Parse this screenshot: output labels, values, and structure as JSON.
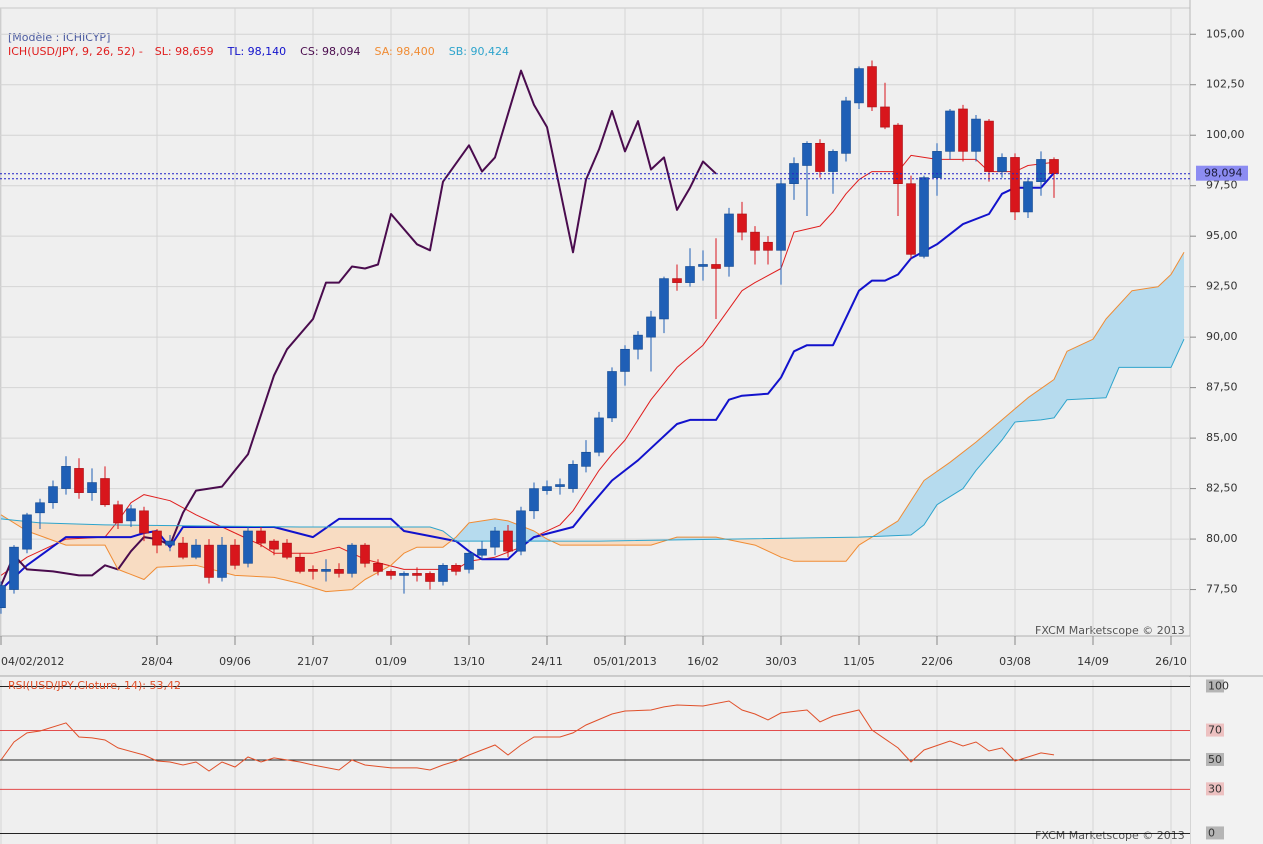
{
  "chart_data": [
    {
      "type": "candlestick",
      "model": "[Modèle : ICHICYP]",
      "indicator": "ICH(USD/JPY, 9, 26, 52) -",
      "watermark": "FXCM Marketscope © 2013",
      "up_color": "#1f5fb6",
      "down_color": "#d8161c",
      "cloud_fill": [
        "#b6dbee",
        "#f8dcc2"
      ],
      "xlim": [
        0,
        91.5
      ],
      "xticks": [
        {
          "value": 0,
          "label": "04/02/2012"
        },
        {
          "value": 12,
          "label": "28/04"
        },
        {
          "value": 18,
          "label": "09/06"
        },
        {
          "value": 24,
          "label": "21/07"
        },
        {
          "value": 30,
          "label": "01/09"
        },
        {
          "value": 36,
          "label": "13/10"
        },
        {
          "value": 42,
          "label": "24/11"
        },
        {
          "value": 48,
          "label": "05/01/2013"
        },
        {
          "value": 54,
          "label": "16/02"
        },
        {
          "value": 60,
          "label": "30/03"
        },
        {
          "value": 66,
          "label": "11/05"
        },
        {
          "value": 72,
          "label": "22/06"
        },
        {
          "value": 78,
          "label": "03/08"
        },
        {
          "value": 84,
          "label": "14/09"
        },
        {
          "value": 90,
          "label": "26/10"
        }
      ],
      "ylim": [
        75.2,
        106.3
      ],
      "yticks": [
        {
          "value": 77.5,
          "label": "77,50"
        },
        {
          "value": 80,
          "label": "80,00"
        },
        {
          "value": 82.5,
          "label": "82,50"
        },
        {
          "value": 85,
          "label": "85,00"
        },
        {
          "value": 87.5,
          "label": "87,50"
        },
        {
          "value": 90,
          "label": "90,00"
        },
        {
          "value": 92.5,
          "label": "92,50"
        },
        {
          "value": 95,
          "label": "95,00"
        },
        {
          "value": 97.5,
          "label": "97,50"
        },
        {
          "value": 100,
          "label": "100,00"
        },
        {
          "value": 102.5,
          "label": "102,50"
        },
        {
          "value": 105,
          "label": "105,00"
        }
      ],
      "grid": true,
      "price_marker": {
        "value": 98.094,
        "label": "98,094",
        "color": "#8c8cf2"
      },
      "x": [
        0,
        1,
        2,
        3,
        4,
        5,
        6,
        7,
        8,
        9,
        10,
        11,
        12,
        13,
        14,
        15,
        16,
        17,
        18,
        19,
        20,
        21,
        22,
        23,
        24,
        25,
        26,
        27,
        28,
        29,
        30,
        31,
        32,
        33,
        34,
        35,
        36,
        37,
        38,
        39,
        40,
        41,
        42,
        43,
        44,
        45,
        46,
        47,
        48,
        49,
        50,
        51,
        52,
        53,
        54,
        55,
        56,
        57,
        58,
        59,
        60,
        61,
        62,
        63,
        64,
        65,
        66,
        67,
        68,
        69,
        70,
        71,
        72,
        73,
        74,
        75,
        76,
        77,
        78,
        79,
        80,
        81
      ],
      "open": [
        76.6,
        77.5,
        79.5,
        81.3,
        81.8,
        82.5,
        83.5,
        82.3,
        83.0,
        81.7,
        80.9,
        81.4,
        80.4,
        79.7,
        79.8,
        79.1,
        79.7,
        78.1,
        79.7,
        78.8,
        80.4,
        79.9,
        79.8,
        79.1,
        78.5,
        78.4,
        78.5,
        78.3,
        79.7,
        78.8,
        78.4,
        78.2,
        78.3,
        78.3,
        77.9,
        78.7,
        78.5,
        79.2,
        79.6,
        80.4,
        79.4,
        81.4,
        82.4,
        82.6,
        82.5,
        83.6,
        84.3,
        86.0,
        88.3,
        89.4,
        90.0,
        90.9,
        92.9,
        92.7,
        93.5,
        93.6,
        93.5,
        96.1,
        95.2,
        94.7,
        94.3,
        97.6,
        98.5,
        99.6,
        98.2,
        99.1,
        101.6,
        103.4,
        101.4,
        100.5,
        97.6,
        94.0,
        97.9,
        99.2,
        101.3,
        99.2,
        100.7,
        98.2,
        98.9,
        96.2,
        97.7,
        98.8
      ],
      "high": [
        77.9,
        79.7,
        81.3,
        82.0,
        82.9,
        84.1,
        84.0,
        83.5,
        83.6,
        81.9,
        81.7,
        81.6,
        80.5,
        80.2,
        80.1,
        80.0,
        80.0,
        80.1,
        80.0,
        80.6,
        80.6,
        80.0,
        80.0,
        79.3,
        78.7,
        79.0,
        78.8,
        79.8,
        79.8,
        79.0,
        78.5,
        78.4,
        78.6,
        78.4,
        78.8,
        78.8,
        79.4,
        79.9,
        80.6,
        80.7,
        81.6,
        82.8,
        82.9,
        83.0,
        83.9,
        84.9,
        86.3,
        88.5,
        89.6,
        90.3,
        91.3,
        93.0,
        93.6,
        94.4,
        94.3,
        94.9,
        96.4,
        96.7,
        95.5,
        95.0,
        97.8,
        98.9,
        99.7,
        99.8,
        99.3,
        101.9,
        103.4,
        103.7,
        102.6,
        100.6,
        98.0,
        98.0,
        99.6,
        101.3,
        101.5,
        101.0,
        100.8,
        99.1,
        99.1,
        97.9,
        99.2,
        98.9
      ],
      "low": [
        76.3,
        77.3,
        79.3,
        80.5,
        81.5,
        82.2,
        82.0,
        81.9,
        81.6,
        80.5,
        80.6,
        79.9,
        79.3,
        79.4,
        79.0,
        79.0,
        77.8,
        77.9,
        78.5,
        78.6,
        79.6,
        79.2,
        79.0,
        78.3,
        78.0,
        77.9,
        78.1,
        78.1,
        78.6,
        78.2,
        78.0,
        77.3,
        77.9,
        77.5,
        77.7,
        78.2,
        78.3,
        79.0,
        79.2,
        79.1,
        79.2,
        81.0,
        82.2,
        82.2,
        82.3,
        83.3,
        84.1,
        85.8,
        87.6,
        88.9,
        88.3,
        90.2,
        92.3,
        92.5,
        92.8,
        90.9,
        93.0,
        94.8,
        93.6,
        93.6,
        92.6,
        96.8,
        96.0,
        97.9,
        97.1,
        98.7,
        101.3,
        101.2,
        100.3,
        96.0,
        93.9,
        93.9,
        97.0,
        98.8,
        98.7,
        98.7,
        97.7,
        97.9,
        95.8,
        95.9,
        97.0,
        96.9
      ],
      "close": [
        77.7,
        79.6,
        81.2,
        81.8,
        82.6,
        83.6,
        82.3,
        82.8,
        81.7,
        80.8,
        81.5,
        80.3,
        79.7,
        79.9,
        79.1,
        79.7,
        78.1,
        79.7,
        78.7,
        80.4,
        79.8,
        79.5,
        79.1,
        78.4,
        78.4,
        78.5,
        78.3,
        79.7,
        78.8,
        78.4,
        78.2,
        78.3,
        78.2,
        77.9,
        78.7,
        78.4,
        79.3,
        79.5,
        80.4,
        79.4,
        81.4,
        82.5,
        82.6,
        82.7,
        83.7,
        84.3,
        86.0,
        88.3,
        89.4,
        90.1,
        91.0,
        92.9,
        92.7,
        93.5,
        93.6,
        93.4,
        96.1,
        95.2,
        94.3,
        94.3,
        97.6,
        98.6,
        99.6,
        98.2,
        99.2,
        101.7,
        103.3,
        101.4,
        100.4,
        97.6,
        94.1,
        97.9,
        99.2,
        101.2,
        99.2,
        100.8,
        98.2,
        98.9,
        96.2,
        97.7,
        98.8,
        98.094
      ],
      "series": [
        {
          "name": "SL: 98,659",
          "color": "#e01e1e",
          "line_width": 1,
          "x": [
            0,
            2,
            5,
            8,
            9,
            10,
            11,
            13,
            15,
            18,
            20,
            21,
            24,
            26,
            28,
            31,
            35,
            36,
            38,
            40,
            41,
            43,
            44,
            45,
            46,
            47,
            48,
            50,
            52,
            54,
            56,
            57,
            58,
            60,
            61,
            63,
            64,
            65,
            66,
            67,
            69,
            70,
            72,
            75,
            76,
            78,
            79,
            81
          ],
          "values": [
            78.2,
            79.1,
            80.0,
            80.1,
            80.9,
            81.8,
            82.2,
            81.9,
            81.2,
            80.3,
            79.7,
            79.3,
            79.3,
            79.6,
            79.0,
            78.5,
            78.5,
            78.9,
            79.1,
            79.6,
            80.1,
            80.7,
            81.4,
            82.4,
            83.4,
            84.2,
            84.9,
            86.9,
            88.5,
            89.6,
            91.4,
            92.3,
            92.7,
            93.4,
            95.2,
            95.5,
            96.2,
            97.1,
            97.8,
            98.2,
            98.2,
            99.0,
            98.8,
            98.8,
            98.2,
            98.2,
            98.5,
            98.66
          ]
        },
        {
          "name": "TL: 98,140",
          "color": "#1212cc",
          "line_width": 2,
          "x": [
            0,
            2,
            5,
            10,
            11,
            12,
            13,
            14,
            21,
            24,
            26,
            30,
            31,
            35,
            36,
            37,
            39,
            40,
            41,
            44,
            45,
            47,
            49,
            50,
            52,
            53,
            55,
            56,
            57,
            59,
            60,
            61,
            62,
            64,
            66,
            67,
            68,
            69,
            70,
            72,
            73,
            74,
            76,
            77,
            78,
            80,
            81
          ],
          "values": [
            77.5,
            78.7,
            80.1,
            80.1,
            80.3,
            80.4,
            79.6,
            80.6,
            80.6,
            80.1,
            81.0,
            81.0,
            80.4,
            79.9,
            79.4,
            79.0,
            79.0,
            79.6,
            80.1,
            80.6,
            81.4,
            82.9,
            83.9,
            84.5,
            85.7,
            85.9,
            85.9,
            86.9,
            87.1,
            87.2,
            88.0,
            89.3,
            89.6,
            89.6,
            92.3,
            92.8,
            92.8,
            93.1,
            93.9,
            94.6,
            95.1,
            95.6,
            96.1,
            97.1,
            97.4,
            97.4,
            98.14
          ]
        },
        {
          "name": "CS: 98,094",
          "color": "#4a0c4e",
          "line_width": 2,
          "x": [
            0,
            1,
            2,
            4,
            6,
            7,
            8,
            9,
            10,
            11,
            12,
            13,
            14,
            15,
            17,
            18,
            19,
            21,
            22,
            24,
            25,
            26,
            27,
            28,
            29,
            30,
            32,
            33,
            34,
            36,
            37,
            38,
            40,
            41,
            42,
            44,
            45,
            46,
            47,
            48,
            49,
            50,
            51,
            52,
            53,
            54,
            55
          ],
          "values": [
            77.7,
            79.2,
            78.5,
            78.4,
            78.2,
            78.2,
            78.7,
            78.5,
            79.4,
            80.1,
            80.0,
            79.7,
            81.3,
            82.4,
            82.6,
            83.4,
            84.2,
            88.1,
            89.4,
            90.9,
            92.7,
            92.7,
            93.5,
            93.4,
            93.6,
            96.1,
            94.6,
            94.3,
            97.7,
            99.5,
            98.2,
            98.9,
            103.2,
            101.5,
            100.4,
            94.2,
            97.8,
            99.3,
            101.2,
            99.2,
            100.7,
            98.3,
            98.9,
            96.3,
            97.4,
            98.7,
            98.094
          ]
        },
        {
          "name": "SA: 98,400",
          "color": "#f08c34",
          "line_width": 1,
          "x": [
            0,
            2,
            5,
            8,
            9,
            11,
            12,
            15,
            18,
            21,
            23,
            25,
            27,
            28,
            30,
            31,
            32,
            34,
            35,
            36,
            38,
            39,
            41,
            42,
            43,
            50,
            52,
            55,
            58,
            60,
            61,
            65,
            66,
            67,
            69,
            71,
            73,
            75,
            77,
            79,
            81,
            82,
            84,
            85,
            87,
            89,
            90,
            91
          ],
          "values": [
            81.2,
            80.4,
            79.7,
            79.7,
            78.5,
            78.0,
            78.6,
            78.7,
            78.2,
            78.1,
            77.8,
            77.4,
            77.5,
            78.0,
            78.7,
            79.3,
            79.6,
            79.6,
            80.1,
            80.8,
            81.0,
            80.9,
            80.4,
            80.0,
            79.7,
            79.7,
            80.1,
            80.1,
            79.7,
            79.1,
            78.9,
            78.9,
            79.7,
            80.1,
            80.9,
            82.9,
            83.8,
            84.8,
            85.9,
            87.0,
            87.9,
            89.3,
            89.9,
            90.9,
            92.3,
            92.5,
            93.1,
            94.2
          ]
        },
        {
          "name": "SB: 90,424",
          "color": "#2ea4cc",
          "line_width": 1,
          "x": [
            0,
            3,
            8,
            23,
            33,
            34,
            35,
            46,
            66,
            70,
            71,
            72,
            74,
            75,
            77,
            78,
            80,
            81,
            82,
            85,
            86,
            90,
            91
          ],
          "values": [
            81.0,
            80.8,
            80.7,
            80.6,
            80.6,
            80.4,
            79.9,
            79.9,
            80.1,
            80.2,
            80.7,
            81.7,
            82.5,
            83.4,
            84.9,
            85.8,
            85.9,
            86.0,
            86.9,
            87.0,
            88.5,
            88.5,
            89.9
          ]
        }
      ]
    },
    {
      "type": "line",
      "title": "RSI(USD/JPY,Cloture, 14): 53,42",
      "color": "#e0502a",
      "watermark": "FXCM Marketscope © 2013",
      "xlim": [
        0,
        91.5
      ],
      "ylim": [
        -6.5,
        104.4
      ],
      "yticks": [
        0,
        30,
        50,
        70,
        100
      ],
      "level_colors": [
        "#000000",
        "#e03030",
        "#000000",
        "#e03030",
        "#000000"
      ],
      "x": [
        0,
        1,
        2,
        3,
        5,
        6,
        7,
        8,
        9,
        11,
        12,
        13,
        14,
        15,
        16,
        17,
        18,
        19,
        20,
        21,
        23,
        24,
        26,
        27,
        28,
        30,
        32,
        33,
        34,
        35,
        36,
        37,
        38,
        39,
        40,
        41,
        43,
        44,
        45,
        47,
        48,
        50,
        51,
        52,
        54,
        56,
        57,
        58,
        59,
        60,
        62,
        63,
        64,
        66,
        67,
        69,
        70,
        71,
        73,
        74,
        75,
        76,
        77,
        78,
        79,
        80,
        81
      ],
      "values": [
        50.0,
        62.2,
        68.4,
        69.7,
        75.2,
        65.6,
        65.0,
        63.6,
        58.2,
        53.4,
        49.3,
        48.6,
        46.6,
        48.6,
        42.5,
        48.6,
        45.2,
        52.0,
        48.6,
        51.4,
        48.6,
        46.6,
        43.2,
        50.0,
        46.6,
        44.6,
        44.6,
        43.2,
        46.6,
        49.3,
        53.4,
        56.8,
        60.2,
        53.4,
        60.2,
        65.6,
        65.6,
        68.4,
        73.8,
        81.3,
        83.3,
        84.0,
        86.1,
        87.4,
        86.7,
        90.1,
        84.0,
        81.3,
        77.2,
        82.0,
        84.0,
        75.9,
        79.9,
        84.0,
        70.4,
        58.2,
        48.6,
        56.8,
        62.9,
        59.5,
        62.2,
        56.1,
        58.2,
        49.3,
        52.0,
        54.8,
        53.42
      ]
    }
  ]
}
